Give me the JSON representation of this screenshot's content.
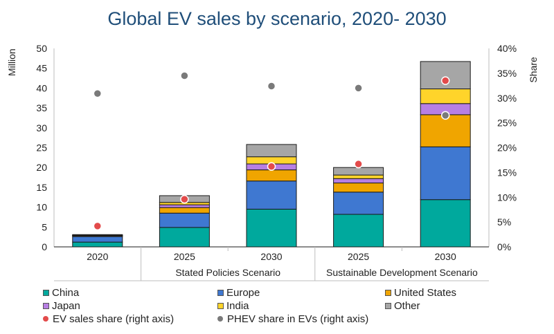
{
  "chart_data": {
    "type": "bar",
    "title": "Global EV sales by scenario, 2020- 2030",
    "ylabel": "Million",
    "y2label": "Share",
    "ylim": [
      0,
      50
    ],
    "y2lim": [
      0,
      40
    ],
    "yticks": [
      "0",
      "5",
      "10",
      "15",
      "20",
      "25",
      "30",
      "35",
      "40",
      "45",
      "50"
    ],
    "y2ticks": [
      "0%",
      "5%",
      "10%",
      "15%",
      "20%",
      "25%",
      "30%",
      "35%",
      "40%"
    ],
    "categories": [
      "2020",
      "2025",
      "2030",
      "2025",
      "2030"
    ],
    "groups": [
      {
        "label": "",
        "span": 1
      },
      {
        "label": "Stated Policies Scenario",
        "span": 2
      },
      {
        "label": "Sustainable Development Scenario",
        "span": 2
      }
    ],
    "series": [
      {
        "name": "China",
        "color": "#00a99d",
        "values": [
          1.2,
          4.9,
          9.5,
          8.2,
          11.9
        ]
      },
      {
        "name": "Europe",
        "color": "#3f78d1",
        "values": [
          1.4,
          3.6,
          7.1,
          5.6,
          13.3
        ]
      },
      {
        "name": "United States",
        "color": "#f0a500",
        "values": [
          0.3,
          1.4,
          2.8,
          2.3,
          8.1
        ]
      },
      {
        "name": "Japan",
        "color": "#b77fe3",
        "values": [
          0.03,
          0.7,
          1.5,
          1.1,
          2.8
        ]
      },
      {
        "name": "India",
        "color": "#ffd42a",
        "values": [
          0.01,
          0.6,
          1.8,
          0.9,
          3.7
        ]
      },
      {
        "name": "Other",
        "color": "#a6a6a6",
        "values": [
          0.15,
          1.7,
          3.1,
          1.9,
          6.9
        ]
      }
    ],
    "line_series": [
      {
        "name": "EV sales share (right axis)",
        "axis": "right",
        "color": "#e34b4b",
        "values": [
          4.2,
          9.6,
          16.2,
          16.7,
          33.5
        ]
      },
      {
        "name": "PHEV share in EVs (right axis)",
        "axis": "right",
        "color": "#7a7a7a",
        "values": [
          30.9,
          34.5,
          32.4,
          32.0,
          26.5
        ]
      }
    ],
    "grid": false,
    "legend_position": "bottom"
  }
}
